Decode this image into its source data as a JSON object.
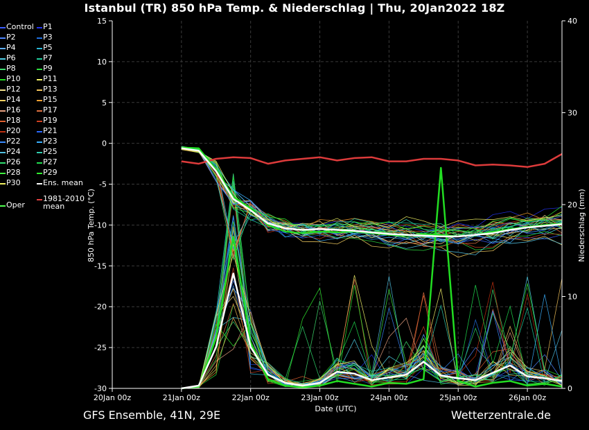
{
  "title": "Istanbul  (TR)  850 hPa Temp. & Niederschlag | Thu, 20Jan2022 18Z",
  "footer": {
    "left": "GFS Ensemble, 41N, 29E",
    "right": "Wetterzentrale.de"
  },
  "legend": [
    {
      "label": "Control",
      "color": "#3a5cff"
    },
    {
      "label": "P1",
      "color": "#2233ee"
    },
    {
      "label": "P2",
      "color": "#4f86ff"
    },
    {
      "label": "P3",
      "color": "#1f6fe0"
    },
    {
      "label": "P4",
      "color": "#5fb0ff"
    },
    {
      "label": "P5",
      "color": "#29b8d8"
    },
    {
      "label": "P6",
      "color": "#4fd0e8"
    },
    {
      "label": "P7",
      "color": "#20d0a0"
    },
    {
      "label": "P8",
      "color": "#3fdf70"
    },
    {
      "label": "P9",
      "color": "#2ee040"
    },
    {
      "label": "P10",
      "color": "#22e022"
    },
    {
      "label": "P11",
      "color": "#f5f56a"
    },
    {
      "label": "P12",
      "color": "#f0e08a"
    },
    {
      "label": "P13",
      "color": "#f4c45a"
    },
    {
      "label": "P14",
      "color": "#f7d060"
    },
    {
      "label": "P15",
      "color": "#f5a030"
    },
    {
      "label": "P16",
      "color": "#e8a080"
    },
    {
      "label": "P17",
      "color": "#e07040"
    },
    {
      "label": "P18",
      "color": "#e06030"
    },
    {
      "label": "P19",
      "color": "#d04020"
    },
    {
      "label": "P20",
      "color": "#c03010"
    },
    {
      "label": "P21",
      "color": "#2a6aff"
    },
    {
      "label": "P22",
      "color": "#3a8cff"
    },
    {
      "label": "P23",
      "color": "#3ab0ff"
    },
    {
      "label": "P24",
      "color": "#50c0e0"
    },
    {
      "label": "P25",
      "color": "#30d0b0"
    },
    {
      "label": "P26",
      "color": "#30e070"
    },
    {
      "label": "P27",
      "color": "#20e050"
    },
    {
      "label": "P28",
      "color": "#40f040"
    },
    {
      "label": "P29",
      "color": "#30f030"
    },
    {
      "label": "P30",
      "color": "#f0f060"
    },
    {
      "label": "Ens. mean",
      "color": "#ffffff"
    },
    {
      "label": "1981-2010\nmean",
      "color": "#e04040"
    },
    {
      "label": "Oper",
      "color": "#50ff50"
    }
  ],
  "chart_data": {
    "type": "line",
    "x_unit": "time steps (6-hourly), 0 = 20Jan 00z",
    "x_range": [
      0,
      26
    ],
    "x_ticks": [
      {
        "x": 0,
        "label": "20Jan 00z"
      },
      {
        "x": 4,
        "label": "21Jan 00z"
      },
      {
        "x": 8,
        "label": "22Jan 00z"
      },
      {
        "x": 12,
        "label": "23Jan 00z"
      },
      {
        "x": 16,
        "label": "24Jan 00z"
      },
      {
        "x": 20,
        "label": "25Jan 00z"
      },
      {
        "x": 24,
        "label": "26Jan 00z"
      }
    ],
    "xlabel": "Date (UTC)",
    "y_left": {
      "label": "850 hPa Temp. (°C)",
      "range": [
        -30,
        15
      ],
      "ticks": [
        15,
        10,
        5,
        0,
        -5,
        -10,
        -15,
        -20,
        -25,
        -30
      ]
    },
    "y_right": {
      "label": "Niederschlag (mm)",
      "range": [
        0,
        40
      ],
      "ticks": [
        40,
        30,
        20,
        10,
        0
      ]
    },
    "grid": true,
    "temperature": {
      "x": [
        4,
        5,
        6,
        7,
        8,
        9,
        10,
        11,
        12,
        13,
        14,
        15,
        16,
        17,
        18,
        19,
        20,
        21,
        22,
        23,
        24,
        25,
        26
      ],
      "ens_mean": [
        -0.6,
        -0.9,
        -3.4,
        -6.8,
        -8.2,
        -9.8,
        -10.4,
        -10.6,
        -10.5,
        -10.6,
        -10.7,
        -10.9,
        -11.1,
        -11.2,
        -11.3,
        -11.4,
        -11.4,
        -11.2,
        -11.0,
        -10.6,
        -10.3,
        -10.1,
        -9.9
      ],
      "oper": [
        -0.5,
        -0.6,
        -3.2,
        -6.5,
        -8.0,
        -10.0,
        -10.8,
        -11.0,
        -10.8,
        -10.9,
        -10.8,
        -11.0,
        -11.2,
        -11.3,
        -11.1,
        -11.2,
        -11.4,
        -11.2,
        -10.8,
        -10.5,
        -10.2,
        -10.0,
        -9.8
      ],
      "clim_mean": [
        -2.2,
        -2.5,
        -1.9,
        -1.7,
        -1.8,
        -2.5,
        -2.1,
        -1.9,
        -1.7,
        -2.1,
        -1.8,
        -1.7,
        -2.2,
        -2.2,
        -1.9,
        -1.9,
        -2.1,
        -2.7,
        -2.6,
        -2.7,
        -2.9,
        -2.5,
        -1.3
      ]
    },
    "precipitation": {
      "x": [
        4,
        5,
        6,
        7,
        8,
        9,
        10,
        11,
        12,
        13,
        14,
        15,
        16,
        17,
        18,
        19,
        20,
        21,
        22,
        23,
        24,
        25,
        26
      ],
      "ens_mean": [
        0,
        0.3,
        4.5,
        12.5,
        4.5,
        1.5,
        0.6,
        0.3,
        0.6,
        1.8,
        1.6,
        0.9,
        1.2,
        1.5,
        2.9,
        1.4,
        1.1,
        0.9,
        1.7,
        2.5,
        1.3,
        1.1,
        0.8
      ],
      "oper": [
        0,
        0.2,
        5.5,
        16.5,
        5.0,
        1.0,
        0.3,
        0.1,
        0.3,
        0.8,
        0.5,
        0.2,
        0.6,
        0.5,
        1.0,
        24.0,
        0.8,
        0.2,
        0.6,
        0.8,
        0.3,
        0.5,
        0.2
      ]
    }
  }
}
